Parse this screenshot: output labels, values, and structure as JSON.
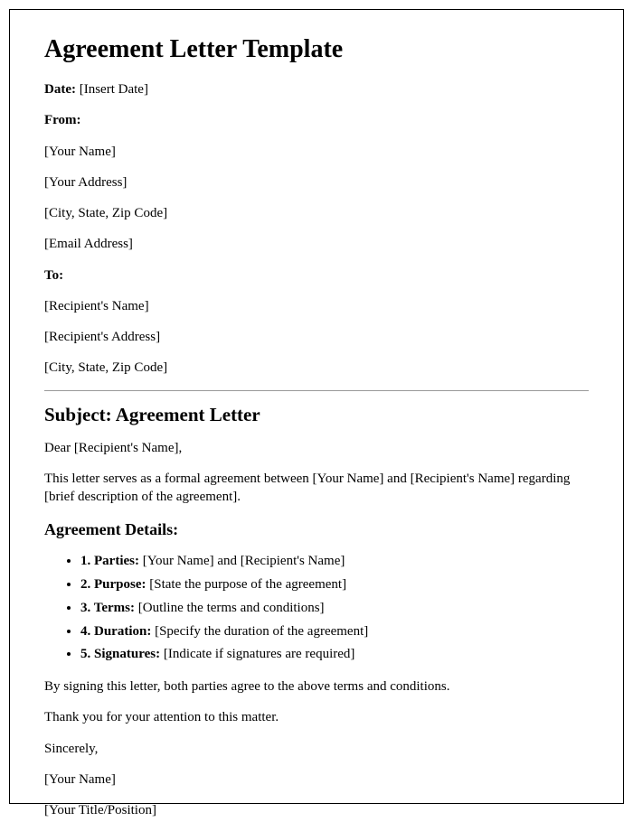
{
  "title": "Agreement Letter Template",
  "date_label": "Date:",
  "date_value": " [Insert Date]",
  "from_label": "From:",
  "from_fields": [
    "[Your Name]",
    "[Your Address]",
    "[City, State, Zip Code]",
    "[Email Address]"
  ],
  "to_label": "To:",
  "to_fields": [
    "[Recipient's Name]",
    "[Recipient's Address]",
    "[City, State, Zip Code]"
  ],
  "subject": "Subject: Agreement Letter",
  "salutation": "Dear [Recipient's Name],",
  "intro": "This letter serves as a formal agreement between [Your Name] and [Recipient's Name] regarding [brief description of the agreement].",
  "details_heading": "Agreement Details:",
  "details": [
    {
      "label": "1. Parties:",
      "value": " [Your Name] and [Recipient's Name]"
    },
    {
      "label": "2. Purpose:",
      "value": " [State the purpose of the agreement]"
    },
    {
      "label": "3. Terms:",
      "value": " [Outline the terms and conditions]"
    },
    {
      "label": "4. Duration:",
      "value": " [Specify the duration of the agreement]"
    },
    {
      "label": "5. Signatures:",
      "value": " [Indicate if signatures are required]"
    }
  ],
  "closing_1": "By signing this letter, both parties agree to the above terms and conditions.",
  "closing_2": "Thank you for your attention to this matter.",
  "signoff": "Sincerely,",
  "sender_name": "[Your Name]",
  "sender_title": "[Your Title/Position]"
}
